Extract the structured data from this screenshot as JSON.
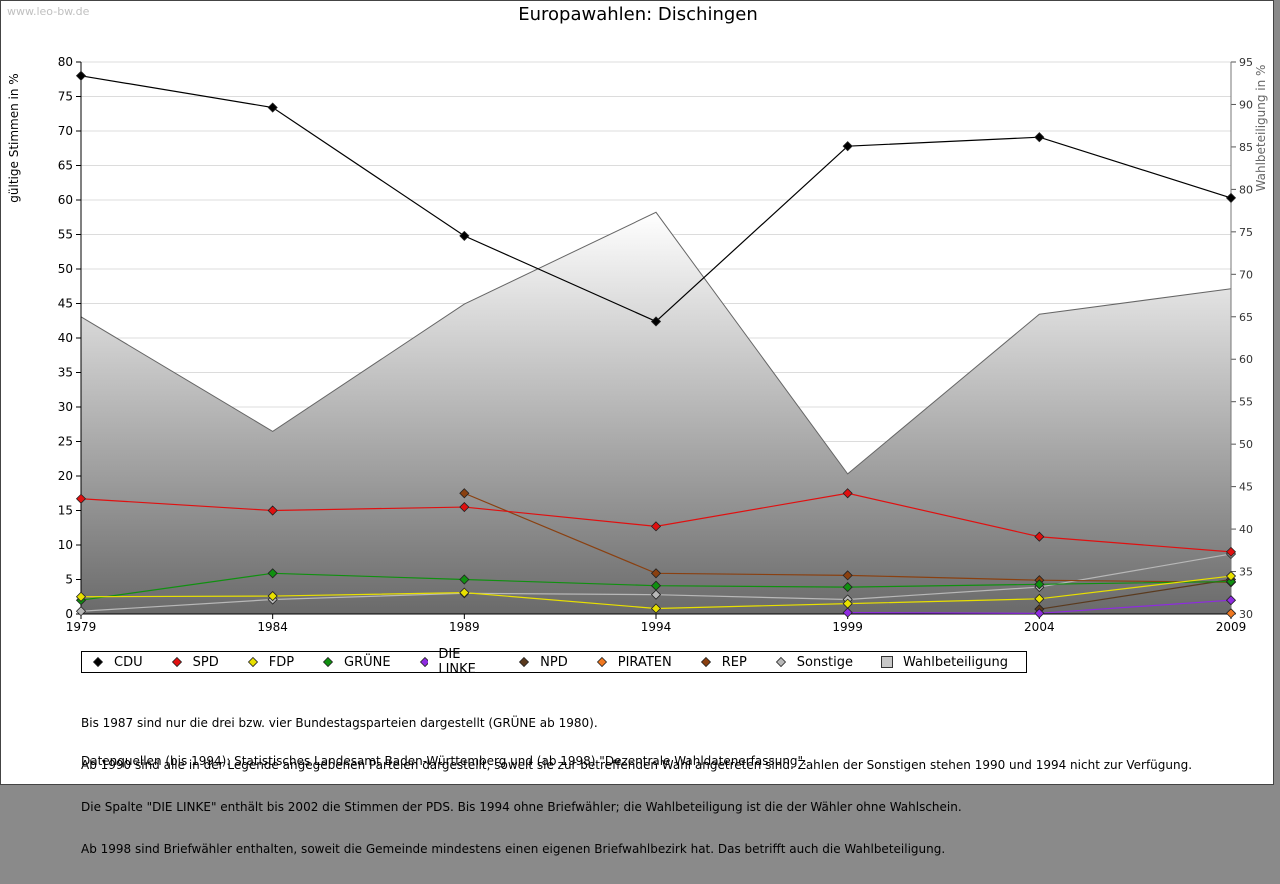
{
  "watermark": "www.leo-bw.de",
  "chart_data": {
    "type": "line",
    "title": "Europawahlen: Dischingen",
    "ylabel": "gültige Stimmen in %",
    "ylabel_right": "Wahlbeteiligung in %",
    "ylim": [
      0,
      80
    ],
    "ylim_right": [
      30,
      95
    ],
    "yticks": [
      "0",
      "5",
      "10",
      "15",
      "20",
      "25",
      "30",
      "35",
      "40",
      "45",
      "50",
      "55",
      "60",
      "65",
      "70",
      "75",
      "80"
    ],
    "yticks_right": [
      "30",
      "35",
      "40",
      "45",
      "50",
      "55",
      "60",
      "65",
      "70",
      "75",
      "80",
      "85",
      "90",
      "95"
    ],
    "x": [
      "1979",
      "1984",
      "1989",
      "1994",
      "1999",
      "2004",
      "2009"
    ],
    "grid": true,
    "legend_position": "bottom",
    "series": [
      {
        "name": "CDU",
        "color": "#000000",
        "values": [
          78.0,
          73.4,
          54.8,
          42.4,
          67.8,
          69.1,
          60.3
        ]
      },
      {
        "name": "SPD",
        "color": "#e01010",
        "values": [
          16.7,
          15.0,
          15.5,
          12.7,
          17.5,
          11.2,
          9.0
        ]
      },
      {
        "name": "FDP",
        "color": "#e8e000",
        "values": [
          2.5,
          2.6,
          3.1,
          0.8,
          1.5,
          2.2,
          5.5
        ]
      },
      {
        "name": "GRÜNE",
        "color": "#109010",
        "values": [
          2.0,
          5.9,
          5.0,
          4.1,
          3.9,
          4.3,
          4.7
        ]
      },
      {
        "name": "DIE LINKE",
        "color": "#8e2be0",
        "values": [
          null,
          null,
          null,
          null,
          0.2,
          0.1,
          2.0
        ]
      },
      {
        "name": "NPD",
        "color": "#5a3a1e",
        "values": [
          null,
          null,
          null,
          null,
          null,
          0.7,
          5.0
        ]
      },
      {
        "name": "PIRATEN",
        "color": "#f07820",
        "values": [
          null,
          null,
          null,
          null,
          null,
          null,
          0.1
        ]
      },
      {
        "name": "REP",
        "color": "#8a4010",
        "values": [
          null,
          null,
          17.5,
          5.9,
          5.6,
          4.9,
          4.6
        ]
      },
      {
        "name": "Sonstige",
        "color": "#b8b8b8",
        "values": [
          0.4,
          2.1,
          3.0,
          2.8,
          2.1,
          3.9,
          8.7
        ]
      },
      {
        "name": "Wahlbeteiligung",
        "axis": "right",
        "type": "area",
        "color": "#808080",
        "values": [
          65.0,
          51.5,
          66.5,
          77.3,
          46.5,
          65.3,
          68.3
        ]
      }
    ]
  },
  "notes": [
    "Bis 1987 sind nur die drei bzw. vier Bundestagsparteien dargestellt (GRÜNE ab 1980).",
    "Ab 1990 sind alle in der Legende angegebenen Parteien dargestellt, soweit sie zur betreffenden Wahl angetreten sind. Zahlen der Sonstigen stehen 1990 und 1994 nicht zur Verfügung.",
    "Die Spalte \"DIE LINKE\" enthält bis 2002 die Stimmen der PDS. Bis 1994 ohne Briefwähler; die Wahlbeteiligung ist die der Wähler ohne Wahlschein.",
    "Ab 1998 sind Briefwähler enthalten, soweit die Gemeinde mindestens einen eigenen Briefwahlbezirk hat. Das betrifft auch die Wahlbeteiligung."
  ],
  "source": "Datenquellen (bis 1994): Statistisches Landesamt Baden-Württemberg und (ab 1998) \"Dezentrale Wahldatenerfassung\"."
}
